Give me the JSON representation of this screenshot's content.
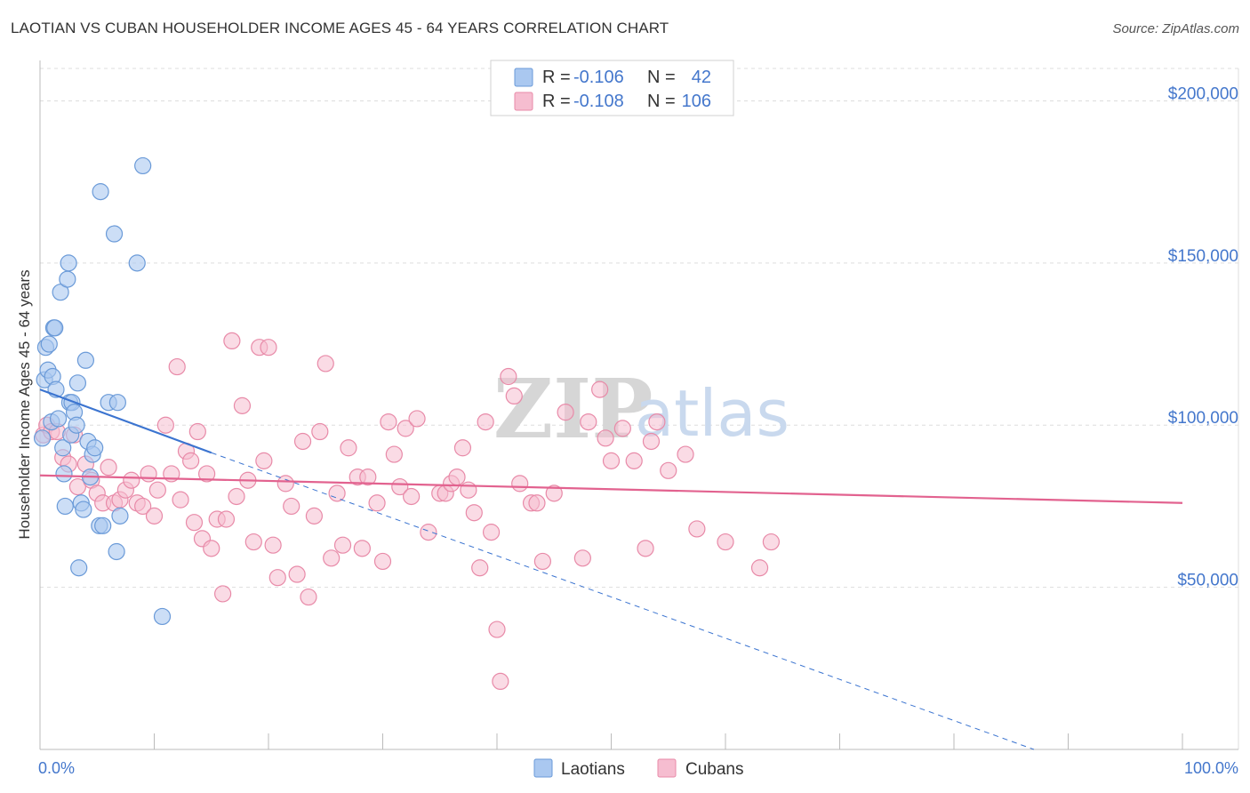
{
  "title": "LAOTIAN VS CUBAN HOUSEHOLDER INCOME AGES 45 - 64 YEARS CORRELATION CHART",
  "source": "Source: ZipAtlas.com",
  "watermark": {
    "zip": "ZIP",
    "atlas": "atlas"
  },
  "legend_top": {
    "rows": [
      {
        "r_label": "R = ",
        "r_value": "-0.106",
        "n_label": "N = ",
        "n_value": "42"
      },
      {
        "r_label": "R = ",
        "r_value": "-0.108",
        "n_label": "N = ",
        "n_value": "106"
      }
    ]
  },
  "legend_bottom": {
    "laotians": "Laotians",
    "cubans": "Cubans"
  },
  "colors": {
    "laotian_fill": "#aac8f0",
    "laotian_stroke": "#6a9ad8",
    "laotian_line": "#3b74d0",
    "cuban_fill": "#f6bdd0",
    "cuban_stroke": "#e88aa8",
    "cuban_line": "#e2628f",
    "grid": "#dddddd",
    "label_blue": "#4477cc"
  },
  "chart_data": {
    "type": "scatter",
    "title": "LAOTIAN VS CUBAN HOUSEHOLDER INCOME AGES 45 - 64 YEARS CORRELATION CHART",
    "xlabel": "",
    "ylabel": "Householder Income Ages 45 - 64 years",
    "x_tick_labels": [
      "0.0%",
      "100.0%"
    ],
    "y_tick_labels": [
      "$50,000",
      "$100,000",
      "$150,000",
      "$200,000"
    ],
    "y_ticks": [
      50000,
      100000,
      150000,
      200000
    ],
    "xlim": [
      0,
      100
    ],
    "ylim": [
      0,
      210000
    ],
    "series": [
      {
        "name": "Laotians",
        "r": -0.106,
        "n": 42,
        "trend": {
          "x0": 0,
          "y0": 111000,
          "x1": 15,
          "y1": 91500,
          "dashed_to_x": 87,
          "dashed_to_y": 0
        },
        "points": [
          [
            0.2,
            96000
          ],
          [
            0.4,
            114000
          ],
          [
            0.5,
            124000
          ],
          [
            0.7,
            117000
          ],
          [
            0.8,
            125000
          ],
          [
            1.0,
            101000
          ],
          [
            1.1,
            115000
          ],
          [
            1.2,
            130000
          ],
          [
            1.3,
            130000
          ],
          [
            1.4,
            111000
          ],
          [
            1.6,
            102000
          ],
          [
            1.8,
            141000
          ],
          [
            2.0,
            93000
          ],
          [
            2.1,
            85000
          ],
          [
            2.2,
            75000
          ],
          [
            2.4,
            145000
          ],
          [
            2.5,
            150000
          ],
          [
            2.6,
            107000
          ],
          [
            2.7,
            97000
          ],
          [
            2.8,
            107000
          ],
          [
            3.0,
            104000
          ],
          [
            3.3,
            113000
          ],
          [
            3.4,
            56000
          ],
          [
            3.6,
            76000
          ],
          [
            3.8,
            74000
          ],
          [
            4.0,
            120000
          ],
          [
            4.2,
            95000
          ],
          [
            4.4,
            84000
          ],
          [
            4.6,
            91000
          ],
          [
            4.8,
            93000
          ],
          [
            5.2,
            69000
          ],
          [
            5.3,
            172000
          ],
          [
            5.5,
            69000
          ],
          [
            6.0,
            107000
          ],
          [
            6.5,
            159000
          ],
          [
            6.7,
            61000
          ],
          [
            6.8,
            107000
          ],
          [
            7.0,
            72000
          ],
          [
            8.5,
            150000
          ],
          [
            9.0,
            180000
          ],
          [
            10.7,
            41000
          ],
          [
            3.2,
            100000
          ]
        ]
      },
      {
        "name": "Cubans",
        "r": -0.108,
        "n": 106,
        "trend": {
          "x0": 0,
          "y0": 84500,
          "x1": 100,
          "y1": 76000
        },
        "points": [
          [
            0.3,
            97000
          ],
          [
            0.6,
            100000
          ],
          [
            1.0,
            98000
          ],
          [
            1.5,
            98000
          ],
          [
            2.0,
            90000
          ],
          [
            2.5,
            88000
          ],
          [
            3.0,
            97000
          ],
          [
            3.3,
            81000
          ],
          [
            4.0,
            88000
          ],
          [
            4.5,
            83000
          ],
          [
            5.0,
            79000
          ],
          [
            5.5,
            76000
          ],
          [
            6.0,
            87000
          ],
          [
            6.5,
            76000
          ],
          [
            7.0,
            77000
          ],
          [
            7.5,
            80000
          ],
          [
            8.0,
            83000
          ],
          [
            8.5,
            76000
          ],
          [
            9.0,
            75000
          ],
          [
            9.5,
            85000
          ],
          [
            10.0,
            72000
          ],
          [
            10.3,
            80000
          ],
          [
            11.0,
            100000
          ],
          [
            11.5,
            85000
          ],
          [
            12.0,
            118000
          ],
          [
            12.3,
            77000
          ],
          [
            12.8,
            92000
          ],
          [
            13.2,
            89000
          ],
          [
            13.5,
            70000
          ],
          [
            13.8,
            98000
          ],
          [
            14.2,
            65000
          ],
          [
            14.6,
            85000
          ],
          [
            15.0,
            62000
          ],
          [
            15.5,
            71000
          ],
          [
            16.0,
            48000
          ],
          [
            16.3,
            71000
          ],
          [
            16.8,
            126000
          ],
          [
            17.2,
            78000
          ],
          [
            17.7,
            106000
          ],
          [
            18.2,
            83000
          ],
          [
            18.7,
            64000
          ],
          [
            19.2,
            124000
          ],
          [
            19.6,
            89000
          ],
          [
            20.0,
            124000
          ],
          [
            20.4,
            63000
          ],
          [
            20.8,
            53000
          ],
          [
            21.5,
            82000
          ],
          [
            22.0,
            75000
          ],
          [
            22.5,
            54000
          ],
          [
            23.0,
            95000
          ],
          [
            23.5,
            47000
          ],
          [
            24.0,
            72000
          ],
          [
            24.5,
            98000
          ],
          [
            25.0,
            119000
          ],
          [
            25.5,
            59000
          ],
          [
            26.0,
            79000
          ],
          [
            26.5,
            63000
          ],
          [
            27.0,
            93000
          ],
          [
            27.8,
            84000
          ],
          [
            28.2,
            62000
          ],
          [
            28.7,
            84000
          ],
          [
            29.5,
            76000
          ],
          [
            30.0,
            58000
          ],
          [
            30.5,
            101000
          ],
          [
            31.0,
            91000
          ],
          [
            31.5,
            81000
          ],
          [
            32.0,
            99000
          ],
          [
            32.5,
            78000
          ],
          [
            33.0,
            102000
          ],
          [
            34.0,
            67000
          ],
          [
            35.0,
            79000
          ],
          [
            35.5,
            79000
          ],
          [
            36.0,
            82000
          ],
          [
            36.5,
            84000
          ],
          [
            37.0,
            93000
          ],
          [
            37.5,
            80000
          ],
          [
            38.0,
            73000
          ],
          [
            38.5,
            56000
          ],
          [
            39.0,
            101000
          ],
          [
            39.5,
            67000
          ],
          [
            40.0,
            37000
          ],
          [
            40.3,
            21000
          ],
          [
            41.0,
            115000
          ],
          [
            41.5,
            109000
          ],
          [
            42.0,
            82000
          ],
          [
            43.0,
            76000
          ],
          [
            43.5,
            76000
          ],
          [
            44.0,
            58000
          ],
          [
            45.0,
            79000
          ],
          [
            46.0,
            104000
          ],
          [
            47.5,
            59000
          ],
          [
            48.0,
            101000
          ],
          [
            49.0,
            111000
          ],
          [
            49.5,
            96000
          ],
          [
            50.0,
            89000
          ],
          [
            51.0,
            99000
          ],
          [
            52.0,
            89000
          ],
          [
            53.0,
            62000
          ],
          [
            53.5,
            95000
          ],
          [
            54.0,
            101000
          ],
          [
            55.0,
            86000
          ],
          [
            56.5,
            91000
          ],
          [
            57.5,
            68000
          ],
          [
            60.0,
            64000
          ],
          [
            63.0,
            56000
          ],
          [
            64.0,
            64000
          ]
        ]
      }
    ]
  }
}
